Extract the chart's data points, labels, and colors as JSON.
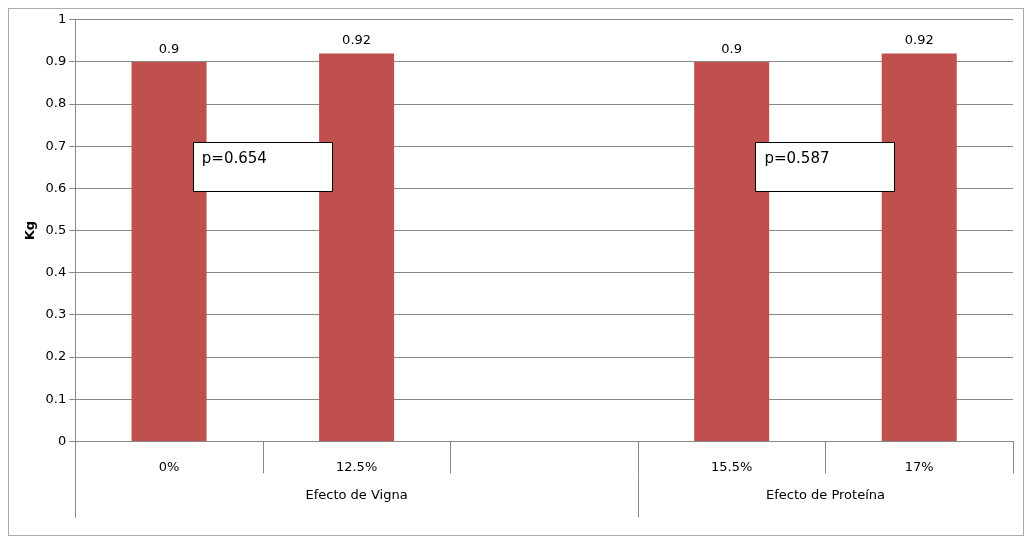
{
  "chart_data": {
    "type": "bar",
    "ylabel": "Kg",
    "categories": [
      "0%",
      "12.5%",
      null,
      "15.5%",
      "17%"
    ],
    "values": [
      0.9,
      0.92,
      null,
      0.9,
      0.92
    ],
    "color": "#c0504d",
    "ylim": [
      0,
      1
    ],
    "yticks": [
      0,
      0.1,
      0.2,
      0.3,
      0.4,
      0.5,
      0.6,
      0.7,
      0.8,
      0.9,
      1
    ],
    "grid": "y",
    "legend": false,
    "data_labels": true,
    "annotations": [
      "p=0.654",
      "p=0.587",
      "Efecto de Vigna",
      "Efecto de Proteína"
    ]
  }
}
